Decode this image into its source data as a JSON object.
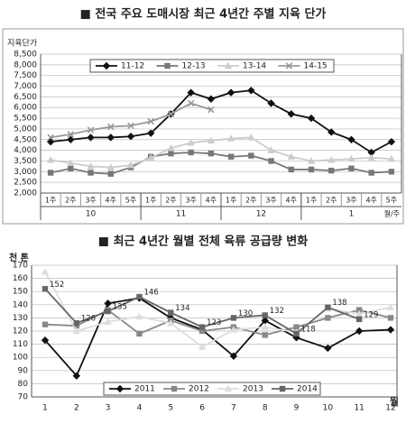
{
  "chart_data": [
    {
      "type": "line",
      "title": "■ 전국 주요 도매시장 최근 4년간 주별 지육 단가",
      "y_label": "지육단가",
      "x_label": "월/주",
      "categories": [
        "1주",
        "2주",
        "3주",
        "4주",
        "5주",
        "1주",
        "2주",
        "3주",
        "4주",
        "1주",
        "2주",
        "3주",
        "4주",
        "1주",
        "2주",
        "3주",
        "4주",
        "5주"
      ],
      "x_groups": [
        {
          "label": "10",
          "span": 5
        },
        {
          "label": "11",
          "span": 4
        },
        {
          "label": "12",
          "span": 4
        },
        {
          "label": "1",
          "span": 5
        }
      ],
      "ylim": [
        2000,
        8500
      ],
      "yticks": [
        {
          "value": 2000,
          "label": "2,000"
        },
        {
          "value": 2500,
          "label": "2,500"
        },
        {
          "value": 3000,
          "label": "3,000"
        },
        {
          "value": 3500,
          "label": "3,500"
        },
        {
          "value": 4000,
          "label": "4,000"
        },
        {
          "value": 4500,
          "label": "4,500"
        },
        {
          "value": 5000,
          "label": "5,000"
        },
        {
          "value": 5500,
          "label": "5,500"
        },
        {
          "value": 6000,
          "label": "6,000"
        },
        {
          "value": 6500,
          "label": "6,500"
        },
        {
          "value": 7000,
          "label": "7,000"
        },
        {
          "value": 7500,
          "label": "7,500"
        },
        {
          "value": 8000,
          "label": "8,000"
        },
        {
          "value": 8500,
          "label": "8,500"
        }
      ],
      "grid": true,
      "legend": "top",
      "series": [
        {
          "name": "11-12",
          "color": "#111111",
          "marker": "diamond",
          "values": [
            4400,
            4500,
            4600,
            4600,
            4650,
            4800,
            5700,
            6700,
            6400,
            6700,
            6800,
            6200,
            5700,
            5500,
            4850,
            4500,
            3900,
            4400
          ]
        },
        {
          "name": "12-13",
          "color": "#777777",
          "marker": "square",
          "values": [
            2950,
            3150,
            2950,
            2900,
            3200,
            3700,
            3850,
            3900,
            3850,
            3700,
            3750,
            3500,
            3100,
            3100,
            3050,
            3150,
            2950,
            3000
          ]
        },
        {
          "name": "13-14",
          "color": "#cccccc",
          "marker": "triangle",
          "values": [
            3550,
            3400,
            3250,
            3200,
            3300,
            3650,
            4100,
            4350,
            4450,
            4550,
            4600,
            4000,
            3700,
            3500,
            3550,
            3600,
            3650,
            3600
          ]
        },
        {
          "name": "14-15",
          "color": "#999999",
          "marker": "x",
          "values": [
            4600,
            4750,
            4950,
            5100,
            5150,
            5350,
            5700,
            6200,
            5900,
            null,
            null,
            null,
            null,
            null,
            null,
            null,
            null,
            null
          ]
        }
      ]
    },
    {
      "type": "line",
      "title": "■ 최근 4년간 월별 전체 육류 공급량 변화",
      "y_label": "천 톤",
      "x_label": "월",
      "categories": [
        "1",
        "2",
        "3",
        "4",
        "5",
        "6",
        "7",
        "8",
        "9",
        "10",
        "11",
        "12"
      ],
      "ylim": [
        70,
        170
      ],
      "yticks": [
        70,
        80,
        90,
        100,
        110,
        120,
        130,
        140,
        150,
        160,
        170
      ],
      "grid": true,
      "legend": "bottom",
      "series": [
        {
          "name": "2011",
          "color": "#111111",
          "marker": "diamond",
          "values": [
            113,
            86,
            141,
            145,
            130,
            121,
            101,
            128,
            115,
            107,
            120,
            121
          ]
        },
        {
          "name": "2012",
          "color": "#888888",
          "marker": "square",
          "values": [
            125,
            124,
            136,
            118,
            128,
            120,
            123,
            117,
            123,
            130,
            136,
            130
          ]
        },
        {
          "name": "2013",
          "color": "#dddddd",
          "marker": "triangle",
          "values": [
            165,
            120,
            127,
            131,
            126,
            108,
            121,
            123,
            119,
            137,
            133,
            138
          ]
        },
        {
          "name": "2014",
          "color": "#666666",
          "marker": "square",
          "show_values": true,
          "values": [
            152,
            126,
            135,
            146,
            134,
            123,
            130,
            132,
            118,
            138,
            129,
            null
          ]
        }
      ]
    }
  ]
}
